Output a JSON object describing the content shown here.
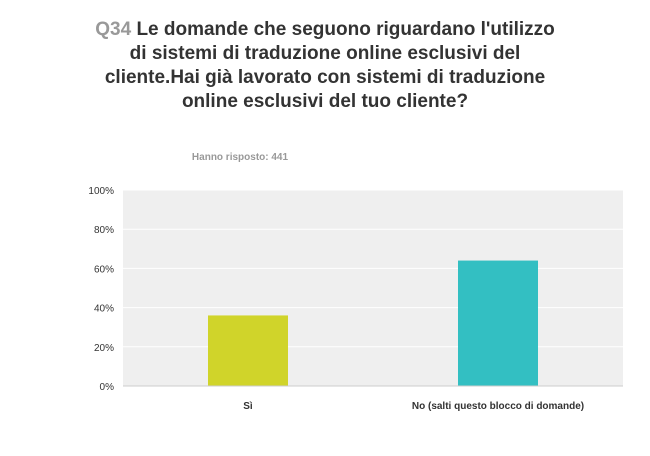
{
  "header": {
    "question_number": "Q34",
    "question_text": "Le domande che seguono riguardano l'utilizzo di sistemi di traduzione online esclusivi del cliente.Hai già lavorato con sistemi di traduzione online esclusivi del tuo cliente?",
    "responses": "Hanno risposto: 441"
  },
  "chart_data": {
    "type": "bar",
    "categories": [
      "Sì",
      "No (salti questo blocco di domande)"
    ],
    "values": [
      36,
      64
    ],
    "unit": "%",
    "ylim": [
      0,
      100
    ],
    "yticks": [
      "0%",
      "20%",
      "40%",
      "60%",
      "80%",
      "100%"
    ],
    "grid": true,
    "colors": [
      "#d0d42a",
      "#33bfc2"
    ],
    "plot_background": "#efefef",
    "gridline_color": "#ffffff"
  }
}
